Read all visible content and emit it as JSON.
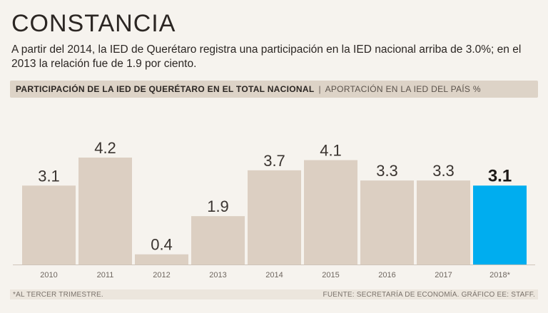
{
  "title": "CONSTANCIA",
  "subtitle": "A partir del 2014, la IED de Querétaro registra una participación en la IED nacional arriba de 3.0%; en el 2013 la relación fue de 1.9 por ciento.",
  "header": {
    "main": "PARTICIPACIÓN DE LA IED DE QUERÉTARO EN EL TOTAL NACIONAL",
    "separator": "|",
    "sub": "APORTACIÓN EN LA IED DEL PAÍS %"
  },
  "footer": {
    "note": "*AL TERCER TRIMESTRE.",
    "source": "FUENTE: SECRETARÍA DE ECONOMÍA. GRÁFICO EE: STAFF."
  },
  "colors": {
    "bar": "#dccfc2",
    "highlight": "#00adef"
  },
  "chart_data": {
    "type": "bar",
    "title": "PARTICIPACIÓN DE LA IED DE QUERÉTARO EN EL TOTAL NACIONAL",
    "ylabel": "APORTACIÓN EN LA IED DEL PAÍS %",
    "xlabel": "",
    "categories": [
      "2010",
      "2011",
      "2012",
      "2013",
      "2014",
      "2015",
      "2016",
      "2017",
      "2018*"
    ],
    "values": [
      3.1,
      4.2,
      0.4,
      1.9,
      3.7,
      4.1,
      3.3,
      3.3,
      3.1
    ],
    "value_labels": [
      "3.1",
      "4.2",
      "0.4",
      "1.9",
      "3.7",
      "4.1",
      "3.3",
      "3.3",
      "3.1"
    ],
    "highlight_index": 8,
    "ylim": [
      0,
      4.5
    ],
    "grid": false
  }
}
